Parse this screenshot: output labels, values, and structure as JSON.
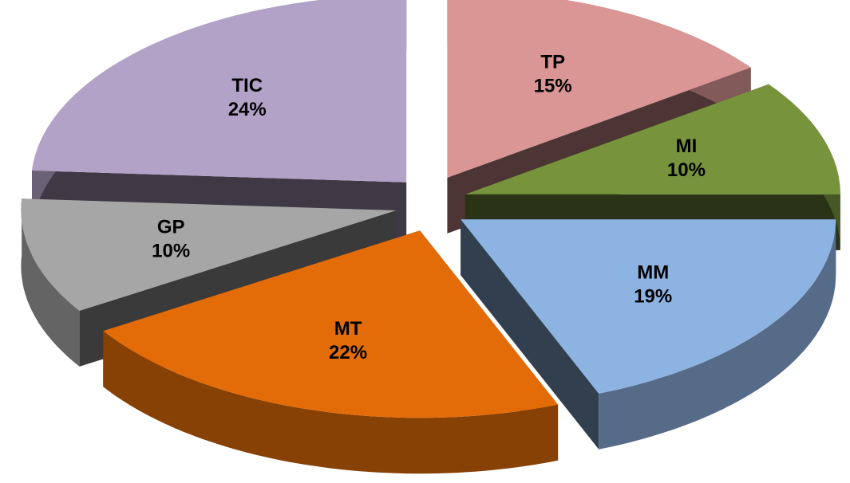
{
  "chart_data": {
    "type": "pie",
    "categories": [
      "TP",
      "MI",
      "MM",
      "MT",
      "GP",
      "TIC"
    ],
    "values": [
      15,
      10,
      19,
      22,
      10,
      24
    ],
    "value_labels": [
      "15%",
      "10%",
      "19%",
      "22%",
      "10%",
      "24%"
    ],
    "colors": [
      "#d99694",
      "#77933c",
      "#8db3e2",
      "#e36c09",
      "#a6a6a6",
      "#b3a2c7"
    ],
    "exploded": true,
    "three_d": true
  }
}
